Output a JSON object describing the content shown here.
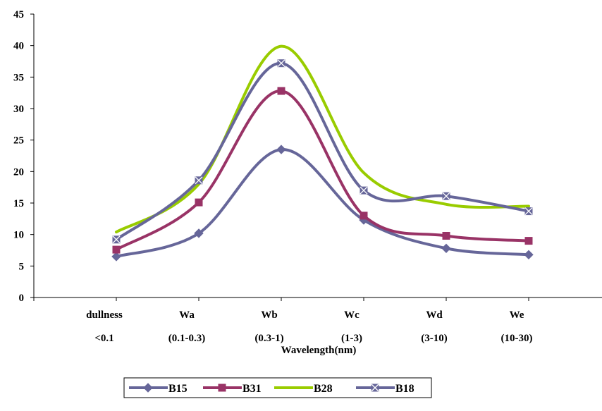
{
  "chart_data": {
    "type": "line",
    "smooth": true,
    "categories": [
      [
        "dullness",
        "<0.1"
      ],
      [
        "Wa",
        "(0.1-0.3)"
      ],
      [
        "Wb",
        "(0.3-1)"
      ],
      [
        "Wc",
        "(1-3)"
      ],
      [
        "Wd",
        "(3-10)"
      ],
      [
        "We",
        "(10-30)"
      ]
    ],
    "xlabel": "Wavelength(nm)",
    "ylabel": "",
    "title": "",
    "ylim": [
      0,
      45
    ],
    "yticks": [
      0,
      5,
      10,
      15,
      20,
      25,
      30,
      35,
      40,
      45
    ],
    "grid": false,
    "legend_position": "bottom",
    "series": [
      {
        "name": "B15",
        "color": "#666699",
        "marker": "diamond",
        "values": [
          6.5,
          10.2,
          23.5,
          12.3,
          7.8,
          6.8
        ]
      },
      {
        "name": "B31",
        "color": "#993366",
        "marker": "square",
        "values": [
          7.6,
          15.1,
          32.8,
          13.0,
          9.8,
          9.0
        ]
      },
      {
        "name": "B28",
        "color": "#99CC00",
        "marker": "none",
        "values": [
          10.4,
          18.0,
          39.9,
          19.8,
          14.8,
          14.5
        ]
      },
      {
        "name": "B18",
        "color": "#666699",
        "marker": "square-x",
        "values": [
          9.2,
          18.6,
          37.2,
          17.0,
          16.1,
          13.7
        ]
      }
    ]
  }
}
